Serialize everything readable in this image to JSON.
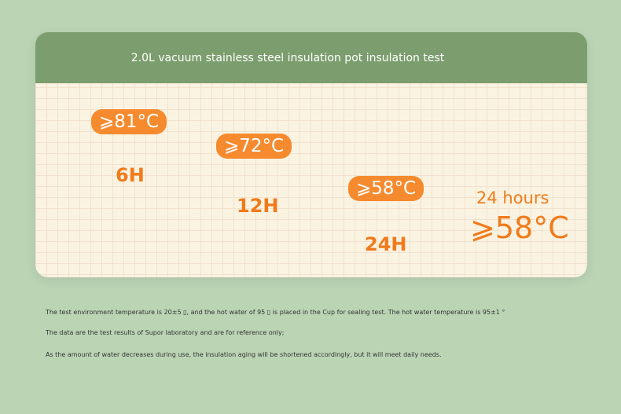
{
  "title": "2.0L vacuum stainless steel insulation pot insulation test",
  "points": [
    {
      "time": "6H",
      "temp": "⩾81°C"
    },
    {
      "time": "12H",
      "temp": "⩾72°C"
    },
    {
      "time": "24H",
      "temp": "⩾58°C"
    }
  ],
  "summary": {
    "hours": "24 hours",
    "temp": "⩾58°C",
    "icon": "thermometer-icon"
  },
  "colors": {
    "accent": "#f58a2e",
    "header": "#7c9e6e",
    "background": "#bad4b4"
  },
  "notes": [
    "The test environment temperature is 20±5 ▯, and the hot water of 95 ▯ is placed in the Cup for sealing test. The hot water temperature is 95±1 °",
    "The data are the test results of Supor laboratory and are for reference only;",
    "As the amount of water decreases during use, the insulation aging will be shortened accordingly, but it will meet daily needs."
  ]
}
